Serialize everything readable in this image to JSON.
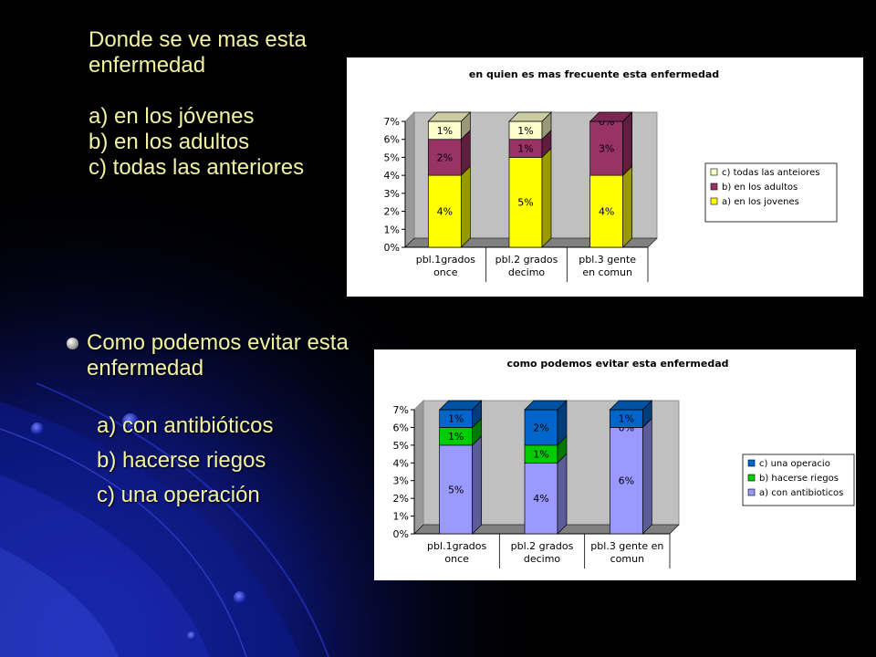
{
  "slide": {
    "question1": {
      "title_lines": [
        "Donde se ve  mas esta",
        "enfermedad"
      ],
      "options": [
        "a) en los jóvenes",
        "b) en los adultos",
        "c) todas las anteriores"
      ]
    },
    "question2": {
      "title_lines": [
        "Como podemos evitar esta",
        "enfermedad"
      ],
      "options": [
        "a) con antibióticos",
        "b) hacerse riegos",
        "c) una operación"
      ]
    }
  },
  "chart_data": [
    {
      "type": "bar",
      "stacked": true,
      "style": "3d",
      "title": "en quien es mas frecuente esta enfermedad",
      "categories": [
        [
          "pbl.1grados",
          "once"
        ],
        [
          "pbl.2 grados",
          "decimo"
        ],
        [
          "pbl.3 gente",
          "en comun"
        ]
      ],
      "series": [
        {
          "name": "a) en los jovenes",
          "values": [
            4,
            5,
            4
          ],
          "labels": [
            "4%",
            "5%",
            "4%"
          ],
          "color": "#ffff00"
        },
        {
          "name": "b) en los adultos",
          "values": [
            2,
            1,
            3
          ],
          "labels": [
            "2%",
            "1%",
            "3%"
          ],
          "color": "#993366"
        },
        {
          "name": "c) todas las anteiores",
          "values": [
            1,
            1,
            0
          ],
          "labels": [
            "1%",
            "1%",
            "0%"
          ],
          "color": "#ffffcc"
        }
      ],
      "yticks": [
        "0%",
        "1%",
        "2%",
        "3%",
        "4%",
        "5%",
        "6%",
        "7%"
      ],
      "ylim": [
        0,
        7
      ],
      "grid": false,
      "legend": "right",
      "wall_color": "#c0c0c0"
    },
    {
      "type": "bar",
      "stacked": true,
      "style": "3d",
      "title": "como podemos evitar esta enfermedad",
      "categories": [
        [
          "pbl.1grados",
          "once"
        ],
        [
          "pbl.2 grados",
          "decimo"
        ],
        [
          "pbl.3 gente en",
          "comun"
        ]
      ],
      "series": [
        {
          "name": "a) con antibioticos",
          "values": [
            5,
            4,
            6
          ],
          "labels": [
            "5%",
            "4%",
            "6%"
          ],
          "color": "#9999ff"
        },
        {
          "name": "b) hacerse riegos",
          "values": [
            1,
            1,
            0
          ],
          "labels": [
            "1%",
            "1%",
            "0%"
          ],
          "color": "#00cc00"
        },
        {
          "name": "c) una operacio",
          "values": [
            1,
            2,
            1
          ],
          "labels": [
            "1%",
            "2%",
            "1%"
          ],
          "color": "#0066cc"
        }
      ],
      "yticks": [
        "0%",
        "1%",
        "2%",
        "3%",
        "4%",
        "5%",
        "6%",
        "7%"
      ],
      "ylim": [
        0,
        7
      ],
      "grid": false,
      "legend": "right",
      "wall_color": "#c0c0c0"
    }
  ]
}
